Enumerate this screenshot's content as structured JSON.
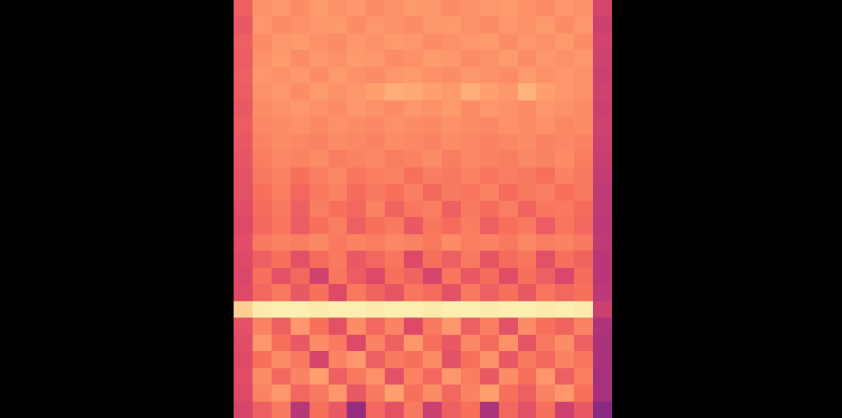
{
  "chart_data": {
    "type": "heatmap",
    "tick_labels": false,
    "zlim": [
      0,
      1
    ],
    "cells": [
      [
        0.66,
        0.77,
        0.78,
        0.76,
        0.79,
        0.77,
        0.78,
        0.76,
        0.77,
        0.79,
        0.78,
        0.76,
        0.77,
        0.78,
        0.79,
        0.77,
        0.76,
        0.78,
        0.77,
        0.58
      ],
      [
        0.64,
        0.78,
        0.76,
        0.77,
        0.78,
        0.79,
        0.76,
        0.78,
        0.77,
        0.76,
        0.78,
        0.79,
        0.77,
        0.76,
        0.78,
        0.77,
        0.79,
        0.76,
        0.78,
        0.55
      ],
      [
        0.66,
        0.76,
        0.78,
        0.79,
        0.77,
        0.76,
        0.78,
        0.77,
        0.79,
        0.78,
        0.76,
        0.77,
        0.78,
        0.79,
        0.76,
        0.78,
        0.77,
        0.79,
        0.76,
        0.57
      ],
      [
        0.65,
        0.77,
        0.79,
        0.76,
        0.78,
        0.77,
        0.79,
        0.78,
        0.76,
        0.77,
        0.79,
        0.78,
        0.76,
        0.77,
        0.79,
        0.76,
        0.78,
        0.77,
        0.78,
        0.56
      ],
      [
        0.66,
        0.78,
        0.77,
        0.78,
        0.76,
        0.79,
        0.77,
        0.76,
        0.78,
        0.79,
        0.77,
        0.76,
        0.78,
        0.77,
        0.76,
        0.79,
        0.77,
        0.78,
        0.77,
        0.55
      ],
      [
        0.65,
        0.77,
        0.78,
        0.76,
        0.79,
        0.77,
        0.78,
        0.8,
        0.83,
        0.82,
        0.8,
        0.79,
        0.83,
        0.8,
        0.78,
        0.84,
        0.8,
        0.78,
        0.77,
        0.56
      ],
      [
        0.64,
        0.76,
        0.77,
        0.78,
        0.77,
        0.76,
        0.78,
        0.77,
        0.76,
        0.78,
        0.77,
        0.79,
        0.76,
        0.78,
        0.77,
        0.76,
        0.78,
        0.77,
        0.76,
        0.55
      ],
      [
        0.65,
        0.75,
        0.76,
        0.77,
        0.75,
        0.77,
        0.76,
        0.75,
        0.77,
        0.76,
        0.75,
        0.77,
        0.76,
        0.75,
        0.77,
        0.76,
        0.77,
        0.75,
        0.76,
        0.56
      ],
      [
        0.64,
        0.74,
        0.76,
        0.75,
        0.74,
        0.76,
        0.75,
        0.74,
        0.76,
        0.75,
        0.74,
        0.76,
        0.75,
        0.74,
        0.75,
        0.76,
        0.74,
        0.75,
        0.74,
        0.55
      ],
      [
        0.63,
        0.73,
        0.75,
        0.74,
        0.76,
        0.73,
        0.74,
        0.75,
        0.73,
        0.74,
        0.76,
        0.73,
        0.75,
        0.74,
        0.73,
        0.75,
        0.74,
        0.76,
        0.73,
        0.54
      ],
      [
        0.62,
        0.72,
        0.74,
        0.7,
        0.73,
        0.75,
        0.71,
        0.73,
        0.74,
        0.7,
        0.73,
        0.72,
        0.74,
        0.71,
        0.73,
        0.72,
        0.7,
        0.74,
        0.72,
        0.53
      ],
      [
        0.62,
        0.7,
        0.73,
        0.68,
        0.72,
        0.74,
        0.69,
        0.72,
        0.7,
        0.73,
        0.68,
        0.72,
        0.71,
        0.74,
        0.69,
        0.72,
        0.73,
        0.7,
        0.72,
        0.52
      ],
      [
        0.61,
        0.69,
        0.72,
        0.66,
        0.73,
        0.7,
        0.68,
        0.74,
        0.67,
        0.71,
        0.73,
        0.66,
        0.72,
        0.69,
        0.73,
        0.67,
        0.71,
        0.72,
        0.69,
        0.52
      ],
      [
        0.6,
        0.68,
        0.71,
        0.65,
        0.7,
        0.73,
        0.66,
        0.7,
        0.72,
        0.64,
        0.71,
        0.69,
        0.73,
        0.66,
        0.7,
        0.72,
        0.65,
        0.71,
        0.68,
        0.51
      ],
      [
        0.61,
        0.72,
        0.74,
        0.73,
        0.75,
        0.72,
        0.74,
        0.73,
        0.75,
        0.74,
        0.72,
        0.76,
        0.73,
        0.74,
        0.72,
        0.75,
        0.73,
        0.74,
        0.72,
        0.52
      ],
      [
        0.6,
        0.66,
        0.7,
        0.62,
        0.69,
        0.72,
        0.64,
        0.68,
        0.71,
        0.6,
        0.7,
        0.66,
        0.72,
        0.63,
        0.69,
        0.71,
        0.62,
        0.7,
        0.67,
        0.5
      ],
      [
        0.59,
        0.7,
        0.62,
        0.68,
        0.56,
        0.71,
        0.65,
        0.6,
        0.7,
        0.67,
        0.58,
        0.71,
        0.64,
        0.69,
        0.61,
        0.7,
        0.66,
        0.59,
        0.69,
        0.5
      ],
      [
        0.6,
        0.68,
        0.72,
        0.64,
        0.7,
        0.6,
        0.72,
        0.67,
        0.63,
        0.71,
        0.69,
        0.62,
        0.72,
        0.66,
        0.7,
        0.64,
        0.71,
        0.68,
        0.7,
        0.51
      ],
      [
        0.9,
        0.96,
        0.97,
        0.97,
        0.96,
        0.97,
        0.97,
        0.96,
        0.97,
        0.97,
        0.96,
        0.97,
        0.97,
        0.96,
        0.97,
        0.97,
        0.96,
        0.97,
        0.96,
        0.55
      ],
      [
        0.62,
        0.74,
        0.66,
        0.78,
        0.7,
        0.62,
        0.76,
        0.68,
        0.74,
        0.6,
        0.72,
        0.78,
        0.66,
        0.73,
        0.62,
        0.76,
        0.7,
        0.67,
        0.74,
        0.48
      ],
      [
        0.61,
        0.78,
        0.7,
        0.64,
        0.76,
        0.72,
        0.6,
        0.74,
        0.66,
        0.78,
        0.7,
        0.64,
        0.75,
        0.69,
        0.77,
        0.63,
        0.72,
        0.76,
        0.66,
        0.47
      ],
      [
        0.6,
        0.7,
        0.76,
        0.72,
        0.58,
        0.74,
        0.78,
        0.66,
        0.72,
        0.7,
        0.76,
        0.62,
        0.7,
        0.77,
        0.64,
        0.72,
        0.68,
        0.74,
        0.71,
        0.47
      ],
      [
        0.61,
        0.76,
        0.68,
        0.74,
        0.8,
        0.66,
        0.72,
        0.77,
        0.62,
        0.74,
        0.68,
        0.78,
        0.73,
        0.64,
        0.76,
        0.7,
        0.78,
        0.66,
        0.73,
        0.46
      ],
      [
        0.6,
        0.74,
        0.78,
        0.68,
        0.72,
        0.78,
        0.64,
        0.72,
        0.8,
        0.7,
        0.76,
        0.68,
        0.74,
        0.8,
        0.7,
        0.66,
        0.74,
        0.78,
        0.7,
        0.46
      ],
      [
        0.58,
        0.66,
        0.72,
        0.5,
        0.7,
        0.64,
        0.42,
        0.68,
        0.62,
        0.72,
        0.55,
        0.66,
        0.7,
        0.48,
        0.68,
        0.62,
        0.7,
        0.56,
        0.64,
        0.4
      ]
    ]
  }
}
